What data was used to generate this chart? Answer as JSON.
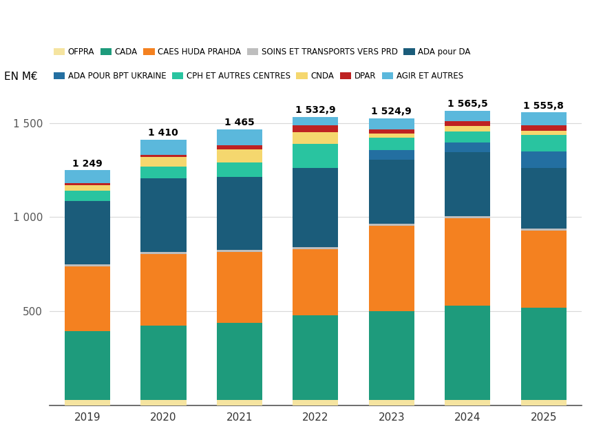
{
  "years": [
    "2019",
    "2020",
    "2021",
    "2022",
    "2023",
    "2024",
    "2025"
  ],
  "totals_display": [
    "1 249",
    "1 410",
    "1 465",
    "1 532,9",
    "1 524,9",
    "1 565,5",
    "1 555,8"
  ],
  "segments_order": [
    "OFPRA",
    "CADA",
    "CAES HUDA PRAHDA",
    "SOINS ET TRANSPORTS VERS PRD",
    "ADA pour DA",
    "ADA POUR BPT UKRAINE",
    "CPH ET AUTRES CENTRES",
    "CNDA",
    "DPAR",
    "AGIR ET AUTRES"
  ],
  "values": {
    "OFPRA": [
      30,
      30,
      30,
      30,
      30,
      30,
      30
    ],
    "CADA": [
      365,
      395,
      410,
      450,
      470,
      500,
      490
    ],
    "CAES HUDA PRAHDA": [
      345,
      380,
      375,
      350,
      455,
      465,
      410
    ],
    "SOINS ET TRANSPORTS VERS PRD": [
      10,
      10,
      10,
      10,
      10,
      10,
      10
    ],
    "ADA pour DA": [
      335,
      390,
      390,
      420,
      340,
      340,
      320
    ],
    "ADA POUR BPT UKRAINE": [
      0,
      0,
      0,
      0,
      50,
      50,
      90
    ],
    "CPH ET AUTRES CENTRES": [
      55,
      65,
      75,
      130,
      65,
      60,
      85
    ],
    "CNDA": [
      30,
      50,
      70,
      60,
      22,
      27,
      25
    ],
    "DPAR": [
      9,
      9,
      22,
      38,
      22,
      27,
      28
    ],
    "AGIR ET AUTRES": [
      70,
      81,
      83,
      44.9,
      60.9,
      56.5,
      67.8
    ]
  },
  "colors": {
    "OFPRA": "#F5E4A0",
    "CADA": "#1E9B7C",
    "CAES HUDA PRAHDA": "#F48120",
    "SOINS ET TRANSPORTS VERS PRD": "#BEBEBE",
    "ADA pour DA": "#1B5C7A",
    "ADA POUR BPT UKRAINE": "#236FA1",
    "CPH ET AUTRES CENTRES": "#29C4A0",
    "CNDA": "#F5D76E",
    "DPAR": "#BE2222",
    "AGIR ET AUTRES": "#5BB8DC"
  },
  "ylabel": "EN M€",
  "bar_width": 0.6,
  "ylim": [
    0,
    1700
  ],
  "ytick_vals": [
    0,
    500,
    1000,
    1500
  ],
  "ytick_labels": [
    "",
    "500",
    "1 000",
    "1 500"
  ]
}
